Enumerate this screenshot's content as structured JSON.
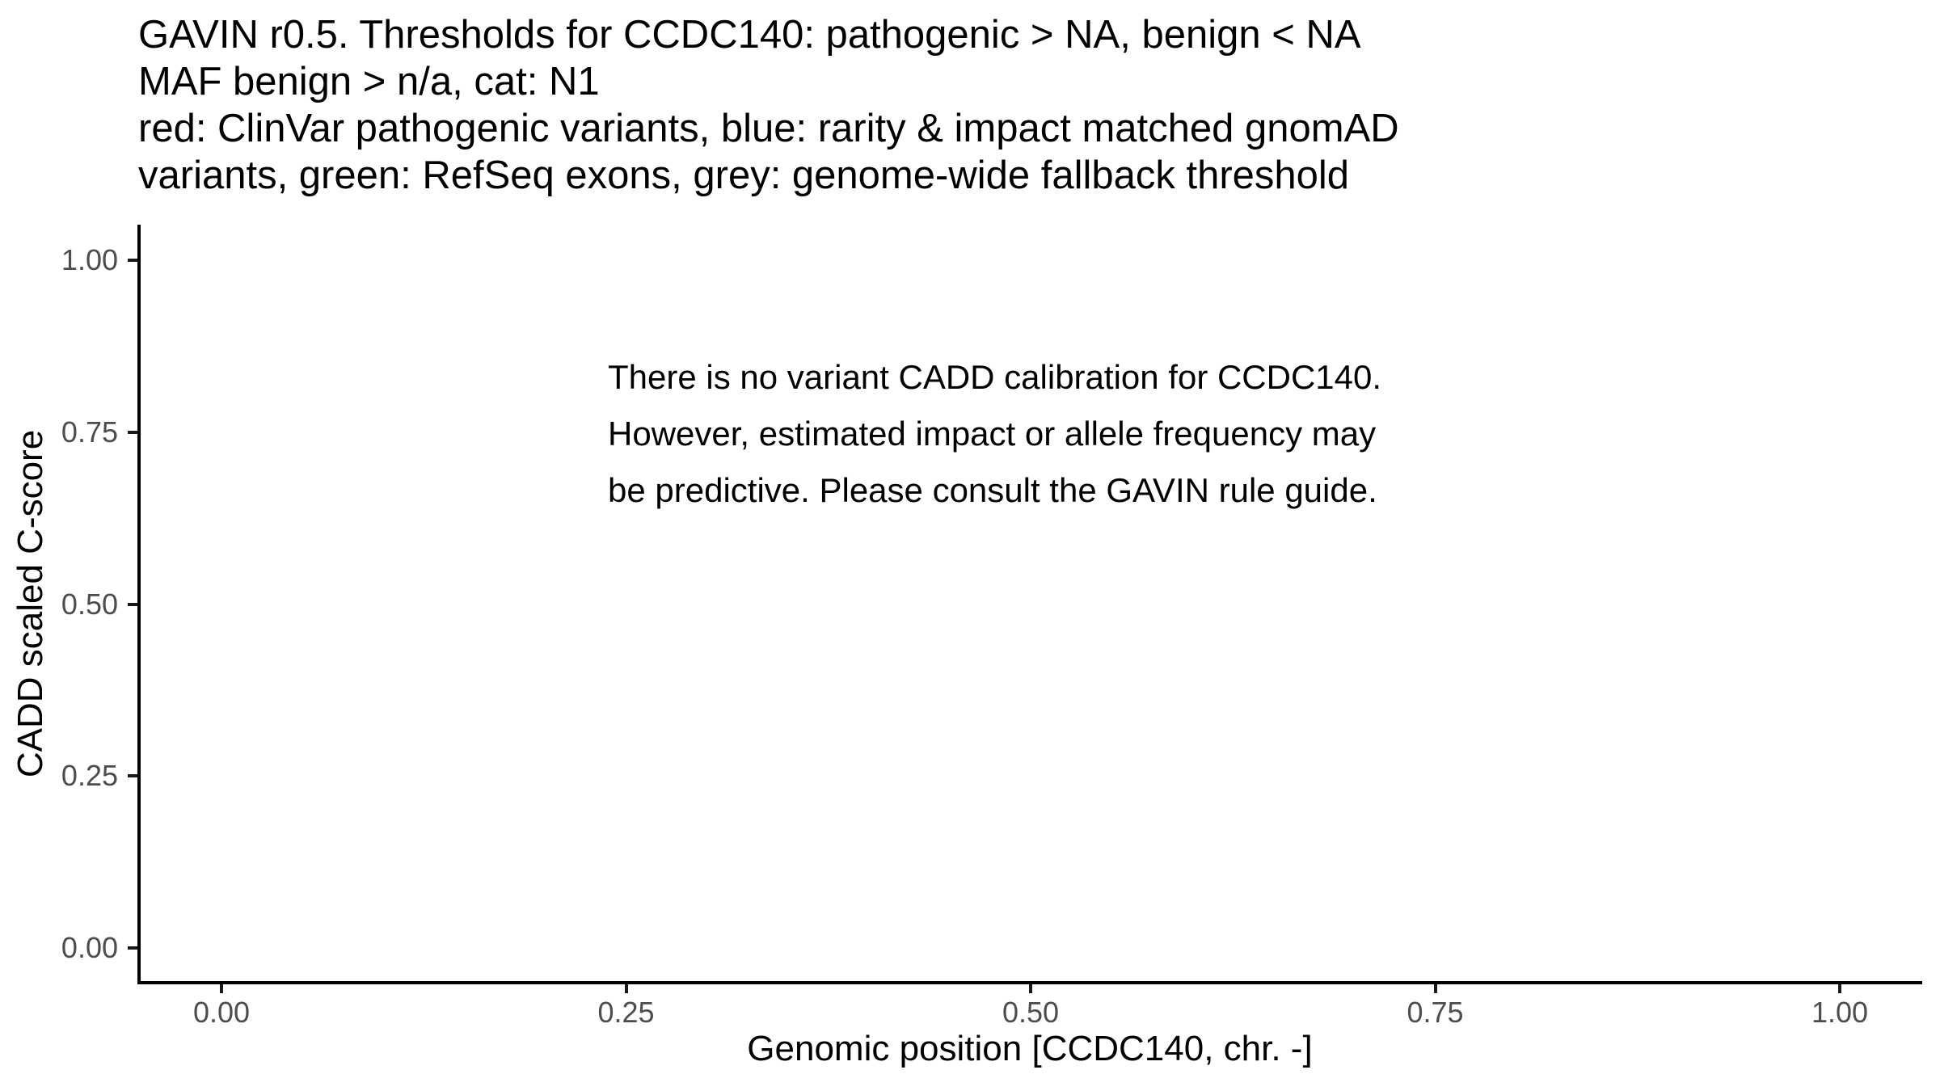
{
  "chart_data": {
    "type": "scatter",
    "title_lines": [
      "GAVIN r0.5. Thresholds for CCDC140: pathogenic > NA, benign < NA",
      "MAF benign > n/a, cat: N1",
      "red: ClinVar pathogenic variants, blue: rarity & impact matched gnomAD",
      "variants, green: RefSeq exons, grey: genome-wide fallback threshold"
    ],
    "title": "GAVIN r0.5. Thresholds for CCDC140: pathogenic > NA, benign < NA\nMAF benign > n/a, cat: N1\nred: ClinVar pathogenic variants, blue: rarity & impact matched gnomAD variants, green: RefSeq exons, grey: genome-wide fallback threshold",
    "xlabel": "Genomic position [CCDC140, chr. -]",
    "ylabel": "CADD scaled C-score",
    "xlim": [
      0,
      1
    ],
    "ylim": [
      0,
      1
    ],
    "x_tick_values": [
      0,
      0.25,
      0.5,
      0.75,
      1
    ],
    "x_tick_labels": [
      "0.00",
      "0.25",
      "0.50",
      "0.75",
      "1.00"
    ],
    "y_tick_values": [
      0,
      0.25,
      0.5,
      0.75,
      1
    ],
    "y_tick_labels": [
      "0.00",
      "0.25",
      "0.50",
      "0.75",
      "1.00"
    ],
    "grid": false,
    "legend": false,
    "series": [],
    "annotation": {
      "lines": [
        "There is no variant CADD calibration for CCDC140.",
        "However, estimated impact or allele frequency may",
        "be predictive. Please consult the GAVIN rule guide."
      ],
      "x": 0.24,
      "y": 0.83
    },
    "colors": {
      "background": "#ffffff",
      "axis_line": "#000000",
      "tick_mark": "#1a1a1a",
      "tick_label": "#4d4d4d",
      "text": "#000000"
    }
  }
}
